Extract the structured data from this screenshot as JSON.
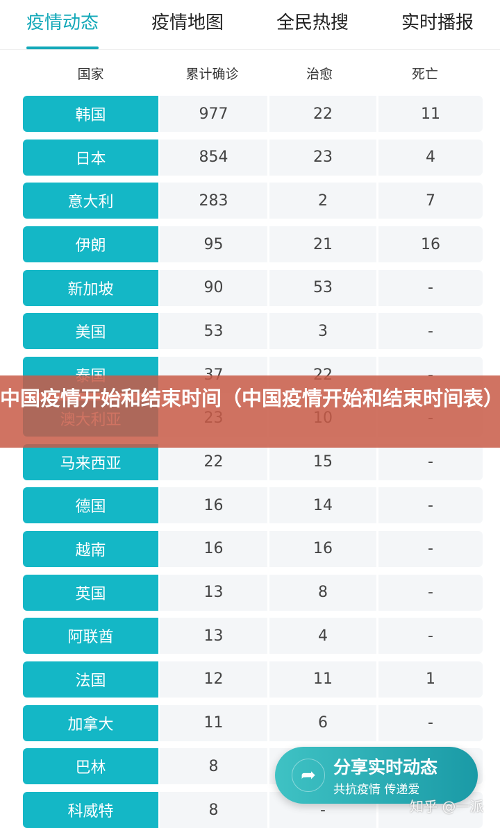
{
  "tabs": [
    "疫情动态",
    "疫情地图",
    "全民热搜",
    "实时播报"
  ],
  "headers": [
    "国家",
    "累计确诊",
    "治愈",
    "死亡"
  ],
  "rows": [
    [
      "韩国",
      "977",
      "22",
      "11"
    ],
    [
      "日本",
      "854",
      "23",
      "4"
    ],
    [
      "意大利",
      "283",
      "2",
      "7"
    ],
    [
      "伊朗",
      "95",
      "21",
      "16"
    ],
    [
      "新加坡",
      "90",
      "53",
      "-"
    ],
    [
      "美国",
      "53",
      "3",
      "-"
    ],
    [
      "泰国",
      "37",
      "22",
      "-"
    ],
    [
      "澳大利亚",
      "23",
      "10",
      "-"
    ],
    [
      "马来西亚",
      "22",
      "15",
      "-"
    ],
    [
      "德国",
      "16",
      "14",
      "-"
    ],
    [
      "越南",
      "16",
      "16",
      "-"
    ],
    [
      "英国",
      "13",
      "8",
      "-"
    ],
    [
      "阿联酋",
      "13",
      "4",
      "-"
    ],
    [
      "法国",
      "12",
      "11",
      "1"
    ],
    [
      "加拿大",
      "11",
      "6",
      "-"
    ],
    [
      "巴林",
      "8",
      "",
      ""
    ],
    [
      "科威特",
      "8",
      "-",
      ""
    ]
  ],
  "banner": "中国疫情开始和结束时间（中国疫情开始和结束时间表）",
  "share": {
    "title": "分享实时动态",
    "subtitle": "共抗疫情 传递爱",
    "icon": "share-arrow-icon"
  },
  "watermark": "知乎 @一派",
  "colors": {
    "accent": "#14b7c6",
    "banner": "#c85a46"
  }
}
